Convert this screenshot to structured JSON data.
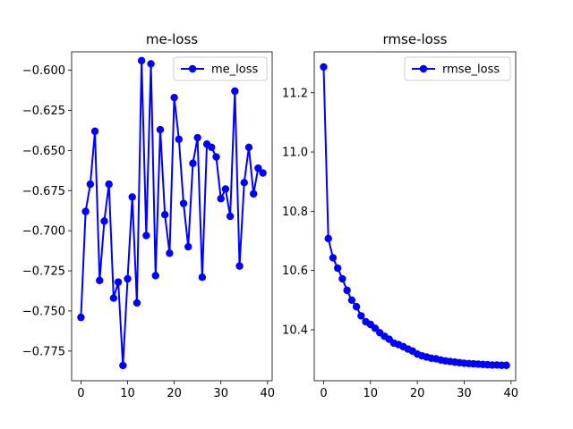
{
  "chart_data": [
    {
      "type": "line",
      "title": "me-loss",
      "xlabel": "",
      "ylabel": "",
      "xlim": [
        -2,
        41
      ],
      "ylim": [
        -0.7935,
        -0.5885
      ],
      "xticks": [
        0,
        10,
        20,
        30,
        40
      ],
      "xtick_labels": [
        "0",
        "10",
        "20",
        "30",
        "40"
      ],
      "yticks": [
        -0.6,
        -0.625,
        -0.65,
        -0.675,
        -0.7,
        -0.725,
        -0.75,
        -0.775
      ],
      "ytick_labels": [
        "−0.600",
        "−0.625",
        "−0.650",
        "−0.675",
        "−0.700",
        "−0.725",
        "−0.750",
        "−0.775"
      ],
      "grid": false,
      "legend": "top-right",
      "series": [
        {
          "name": "me_loss",
          "color": "#0000ff",
          "marker": "circle",
          "x": [
            0,
            1,
            2,
            3,
            4,
            5,
            6,
            7,
            8,
            9,
            10,
            11,
            12,
            13,
            14,
            15,
            16,
            17,
            18,
            19,
            20,
            21,
            22,
            23,
            24,
            25,
            26,
            27,
            28,
            29,
            30,
            31,
            32,
            33,
            34,
            35,
            36,
            37,
            38,
            39
          ],
          "values": [
            -0.754,
            -0.688,
            -0.671,
            -0.638,
            -0.731,
            -0.694,
            -0.671,
            -0.742,
            -0.732,
            -0.784,
            -0.73,
            -0.679,
            -0.745,
            -0.594,
            -0.703,
            -0.596,
            -0.728,
            -0.637,
            -0.69,
            -0.714,
            -0.617,
            -0.643,
            -0.683,
            -0.71,
            -0.658,
            -0.642,
            -0.729,
            -0.646,
            -0.648,
            -0.654,
            -0.68,
            -0.674,
            -0.691,
            -0.613,
            -0.722,
            -0.67,
            -0.648,
            -0.677,
            -0.661,
            -0.664
          ]
        }
      ]
    },
    {
      "type": "line",
      "title": "rmse-loss",
      "xlabel": "",
      "ylabel": "",
      "xlim": [
        -2,
        41
      ],
      "ylim": [
        10.228,
        11.338
      ],
      "xticks": [
        0,
        10,
        20,
        30,
        40
      ],
      "xtick_labels": [
        "0",
        "10",
        "20",
        "30",
        "40"
      ],
      "yticks": [
        10.4,
        10.6,
        10.8,
        11.0,
        11.2
      ],
      "ytick_labels": [
        "10.4",
        "10.6",
        "10.8",
        "11.0",
        "11.2"
      ],
      "grid": false,
      "legend": "top-right",
      "series": [
        {
          "name": "rmse_loss",
          "color": "#0000ff",
          "marker": "circle",
          "x": [
            0,
            1,
            2,
            3,
            4,
            5,
            6,
            7,
            8,
            9,
            10,
            11,
            12,
            13,
            14,
            15,
            16,
            17,
            18,
            19,
            20,
            21,
            22,
            23,
            24,
            25,
            26,
            27,
            28,
            29,
            30,
            31,
            32,
            33,
            34,
            35,
            36,
            37,
            38,
            39
          ],
          "values": [
            11.287,
            10.708,
            10.643,
            10.608,
            10.572,
            10.533,
            10.5,
            10.478,
            10.447,
            10.427,
            10.418,
            10.405,
            10.39,
            10.378,
            10.368,
            10.355,
            10.35,
            10.343,
            10.335,
            10.328,
            10.318,
            10.312,
            10.308,
            10.304,
            10.302,
            10.298,
            10.295,
            10.293,
            10.291,
            10.289,
            10.287,
            10.286,
            10.285,
            10.284,
            10.283,
            10.282,
            10.281,
            10.281,
            10.28,
            10.28
          ]
        }
      ]
    }
  ]
}
